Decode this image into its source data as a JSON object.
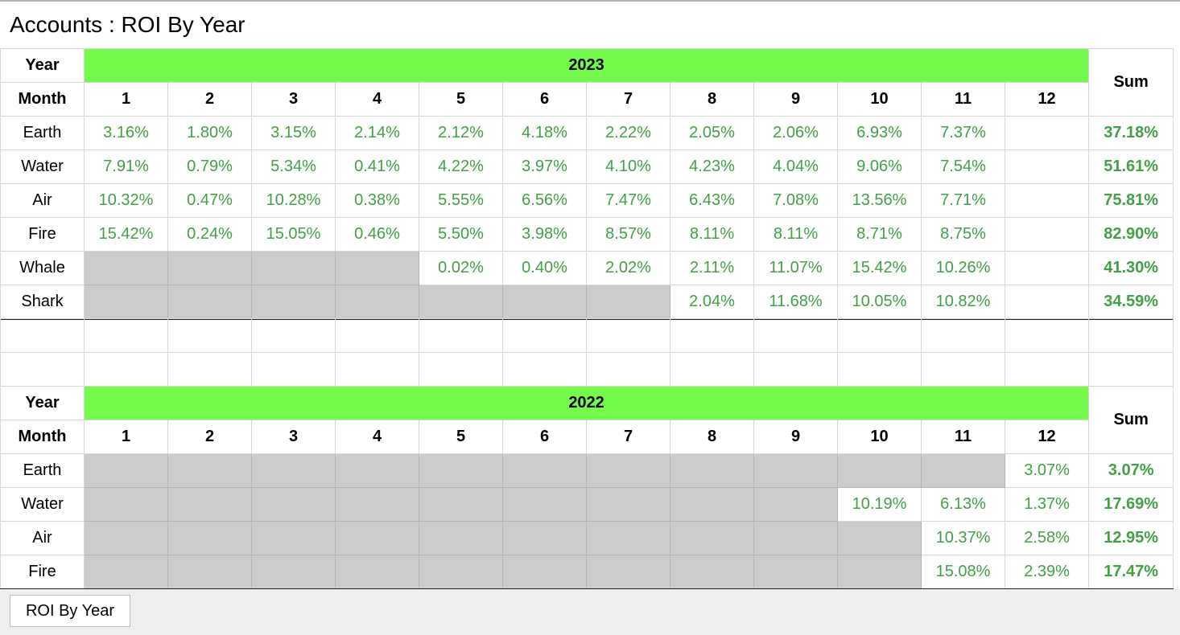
{
  "title": "Accounts : ROI By Year",
  "colors": {
    "year_band": "#74fa4b",
    "value_text": "#43a047",
    "empty_cell": "#cccccc"
  },
  "labels": {
    "year": "Year",
    "month": "Month",
    "sum": "Sum"
  },
  "months": [
    "1",
    "2",
    "3",
    "4",
    "5",
    "6",
    "7",
    "8",
    "9",
    "10",
    "11",
    "12"
  ],
  "tables": [
    {
      "year": "2023",
      "rows": [
        {
          "account": "Earth",
          "values": [
            "3.16%",
            "1.80%",
            "3.15%",
            "2.14%",
            "2.12%",
            "4.18%",
            "2.22%",
            "2.05%",
            "2.06%",
            "6.93%",
            "7.37%",
            ""
          ],
          "sum": "37.18%"
        },
        {
          "account": "Water",
          "values": [
            "7.91%",
            "0.79%",
            "5.34%",
            "0.41%",
            "4.22%",
            "3.97%",
            "4.10%",
            "4.23%",
            "4.04%",
            "9.06%",
            "7.54%",
            ""
          ],
          "sum": "51.61%"
        },
        {
          "account": "Air",
          "values": [
            "10.32%",
            "0.47%",
            "10.28%",
            "0.38%",
            "5.55%",
            "6.56%",
            "7.47%",
            "6.43%",
            "7.08%",
            "13.56%",
            "7.71%",
            ""
          ],
          "sum": "75.81%"
        },
        {
          "account": "Fire",
          "values": [
            "15.42%",
            "0.24%",
            "15.05%",
            "0.46%",
            "5.50%",
            "3.98%",
            "8.57%",
            "8.11%",
            "8.11%",
            "8.71%",
            "8.75%",
            ""
          ],
          "sum": "82.90%"
        },
        {
          "account": "Whale",
          "values": [
            null,
            null,
            null,
            null,
            "0.02%",
            "0.40%",
            "2.02%",
            "2.11%",
            "11.07%",
            "15.42%",
            "10.26%",
            ""
          ],
          "sum": "41.30%"
        },
        {
          "account": "Shark",
          "values": [
            null,
            null,
            null,
            null,
            null,
            null,
            null,
            "2.04%",
            "11.68%",
            "10.05%",
            "10.82%",
            ""
          ],
          "sum": "34.59%"
        }
      ]
    },
    {
      "year": "2022",
      "rows": [
        {
          "account": "Earth",
          "values": [
            null,
            null,
            null,
            null,
            null,
            null,
            null,
            null,
            null,
            null,
            null,
            "3.07%"
          ],
          "sum": "3.07%"
        },
        {
          "account": "Water",
          "values": [
            null,
            null,
            null,
            null,
            null,
            null,
            null,
            null,
            null,
            "10.19%",
            "6.13%",
            "1.37%"
          ],
          "sum": "17.69%"
        },
        {
          "account": "Air",
          "values": [
            null,
            null,
            null,
            null,
            null,
            null,
            null,
            null,
            null,
            null,
            "10.37%",
            "2.58%"
          ],
          "sum": "12.95%"
        },
        {
          "account": "Fire",
          "values": [
            null,
            null,
            null,
            null,
            null,
            null,
            null,
            null,
            null,
            null,
            "15.08%",
            "2.39%"
          ],
          "sum": "17.47%"
        }
      ]
    }
  ],
  "footer": {
    "tab_label": "ROI By Year"
  }
}
